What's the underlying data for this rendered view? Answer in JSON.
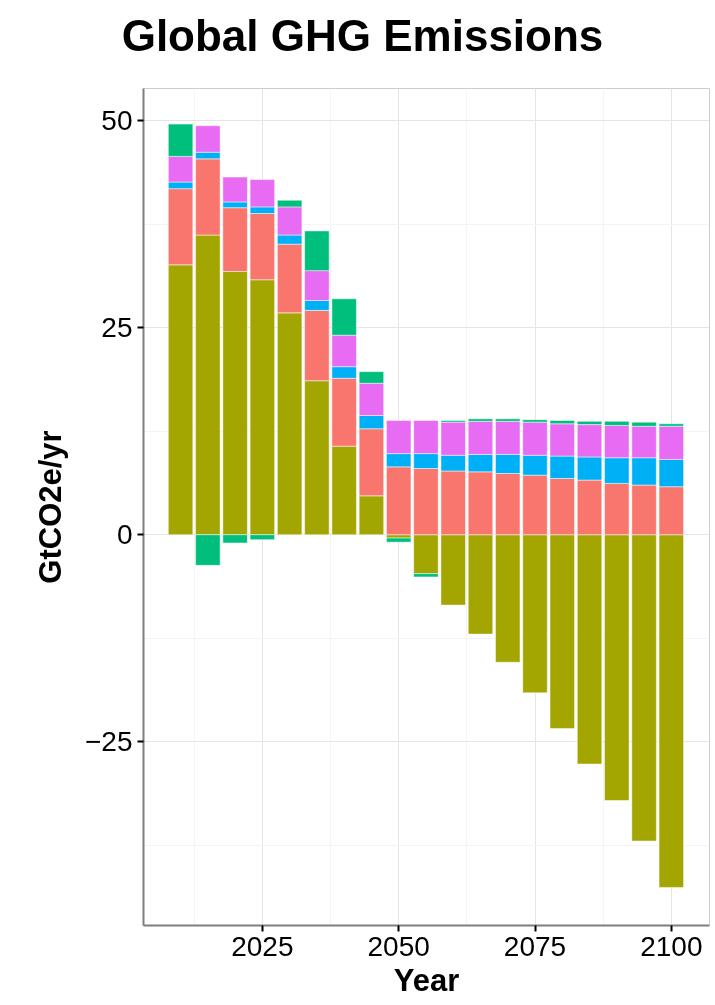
{
  "chart_data": {
    "type": "bar",
    "stacked": true,
    "title": "Global GHG Emissions",
    "xlabel": "Year",
    "ylabel": "GtCO2e/yr",
    "x": [
      2010,
      2015,
      2020,
      2025,
      2030,
      2035,
      2040,
      2045,
      2050,
      2055,
      2060,
      2065,
      2070,
      2075,
      2080,
      2085,
      2090,
      2095,
      2100
    ],
    "series": [
      {
        "color": "#a3a500",
        "values": [
          32.6,
          36.2,
          31.8,
          30.8,
          26.8,
          18.6,
          10.7,
          4.7,
          -0.4,
          -4.7,
          -8.5,
          -12.0,
          -15.4,
          -19.1,
          -23.4,
          -27.7,
          -32.1,
          -37.0,
          -42.6
        ]
      },
      {
        "color": "#f8766d",
        "values": [
          9.2,
          9.2,
          7.7,
          8.0,
          8.3,
          8.5,
          8.2,
          8.1,
          8.2,
          8.0,
          7.7,
          7.6,
          7.4,
          7.2,
          6.8,
          6.6,
          6.2,
          6.0,
          5.8
        ]
      },
      {
        "color": "#00b0f6",
        "values": [
          0.8,
          0.8,
          0.7,
          0.8,
          1.1,
          1.2,
          1.4,
          1.6,
          1.6,
          1.8,
          1.9,
          2.1,
          2.3,
          2.4,
          2.7,
          2.8,
          3.1,
          3.3,
          3.3
        ]
      },
      {
        "color": "#e76bf3",
        "values": [
          3.1,
          3.2,
          3.0,
          3.3,
          3.4,
          3.6,
          3.8,
          3.9,
          4.0,
          4.0,
          4.0,
          4.0,
          4.0,
          4.0,
          3.9,
          3.9,
          3.9,
          3.8,
          4.0
        ]
      },
      {
        "color": "#00bf7d",
        "values": [
          3.9,
          -3.7,
          -1.0,
          -0.6,
          0.8,
          4.8,
          4.4,
          1.4,
          -0.5,
          -0.4,
          0.2,
          0.3,
          0.3,
          0.3,
          0.4,
          0.4,
          0.5,
          0.5,
          0.3
        ]
      }
    ],
    "xlim": [
      2003.2,
      2107
    ],
    "xticks": [
      2025,
      2050,
      2075,
      2100
    ],
    "ylim": [
      -47.2,
      53.9
    ],
    "yticks": [
      -25,
      0,
      25,
      50
    ],
    "grid": true
  }
}
